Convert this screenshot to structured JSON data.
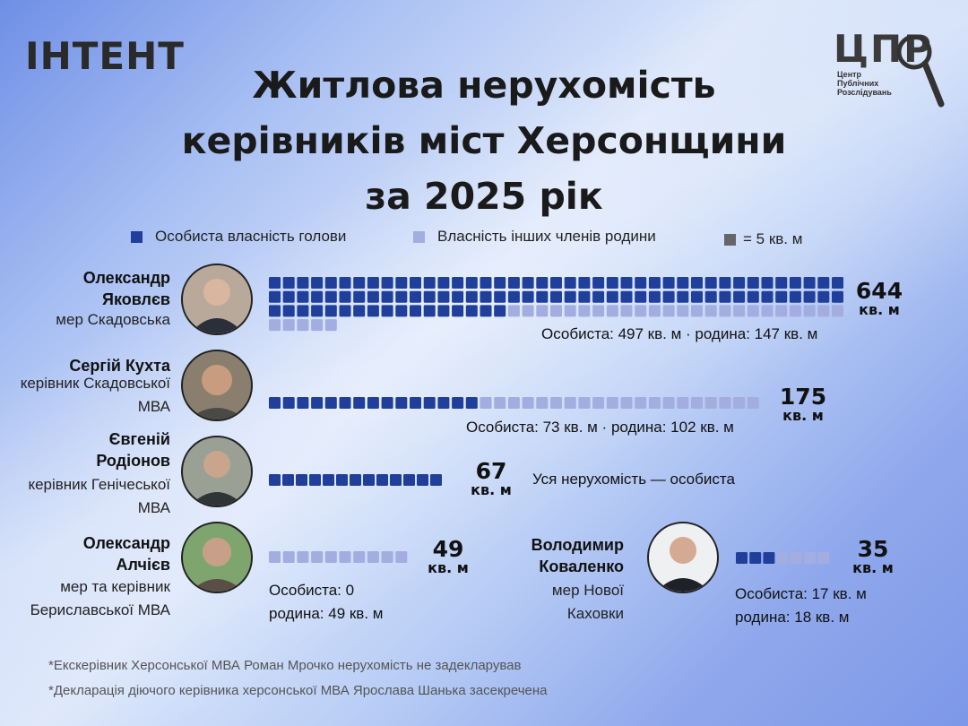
{
  "header": {
    "logo_left": "ІНТЕНТ",
    "logo_right_big": "ЦПР",
    "logo_right_small": [
      "Центр",
      "Публічних",
      "Розслідувань"
    ],
    "title_lines": [
      "Житлова нерухомість",
      "керівників міст Херсонщини",
      "за 2025 рік"
    ]
  },
  "legend": {
    "personal": "Особиста власність голови",
    "family": "Власність інших членів родини",
    "unit": "= 5 кв. м"
  },
  "colors": {
    "personal": "#203f9a",
    "family": "#a3addf",
    "unit": "#666666"
  },
  "people": [
    {
      "name": "Олександр Яковлєв",
      "role": "мер Скадовська",
      "total": "644",
      "unit": "кв. м",
      "note": "Особиста: 497 кв. м · родина: 147 кв. м"
    },
    {
      "name": "Сергій Кухта",
      "role": "керівник Скадовської МВА",
      "total": "175",
      "unit": "кв. м",
      "note": "Особиста: 73 кв. м · родина: 102 кв. м"
    },
    {
      "name": "Євгеній Родіонов",
      "role": "керівник Генічеської МВА",
      "total": "67",
      "unit": "кв. м",
      "note": "Уся нерухомість — особиста"
    },
    {
      "name": "Олександр Алчієв",
      "role": "мер та керівник Бериславської МВА",
      "total": "49",
      "unit": "кв. м",
      "note_lines": [
        "Особиста: 0",
        "родина: 49 кв. м"
      ]
    },
    {
      "name": "Володимир Коваленко",
      "role": "мер Нової Каховки",
      "total": "35",
      "unit": "кв. м",
      "note_lines": [
        "Особиста: 17 кв. м",
        "родина: 18 кв. м"
      ]
    }
  ],
  "footnotes": [
    "*Екскерівник Херсонської МВА Роман Мрочко нерухомість не задекларував",
    "*Декларація діючого керівника херсонської МВА Ярослава Шанька засекречена"
  ],
  "chart_data": {
    "type": "bar",
    "categories": [
      "Олександр Яковлєв",
      "Сергій Кухта",
      "Євгеній Родіонов",
      "Олександр Алчієв",
      "Володимир Коваленко"
    ],
    "series": [
      {
        "name": "Особиста власність голови",
        "values": [
          497,
          73,
          67,
          0,
          17
        ]
      },
      {
        "name": "Власність інших членів родини",
        "values": [
          147,
          102,
          0,
          49,
          18
        ]
      }
    ],
    "totals": [
      644,
      175,
      67,
      49,
      35
    ],
    "unit_square_sqm": 5
  }
}
